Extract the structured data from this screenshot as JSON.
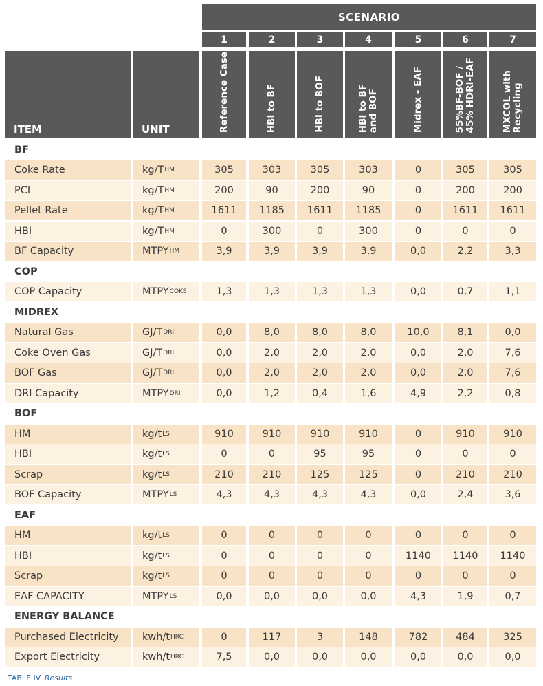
{
  "header": {
    "scenario_title": "SCENARIO",
    "item_label": "ITEM",
    "unit_label": "UNIT",
    "scenarios": [
      {
        "number": "1",
        "name": "Reference Case"
      },
      {
        "number": "2",
        "name": "HBI to BF"
      },
      {
        "number": "3",
        "name": "HBI to BOF"
      },
      {
        "number": "4",
        "name": "HBI to BF\nand BOF"
      },
      {
        "number": "5",
        "name": "Midrex - EAF"
      },
      {
        "number": "6",
        "name": "55%BF-BOF /\n45% HDRI-EAF"
      },
      {
        "number": "7",
        "name": "MXCOL with\nRecycling"
      }
    ]
  },
  "sections": [
    {
      "title": "BF",
      "rows": [
        {
          "item": "Coke Rate",
          "unit": "kg/T",
          "unit_sub": "HM",
          "values": [
            "305",
            "303",
            "305",
            "303",
            "0",
            "305",
            "305"
          ]
        },
        {
          "item": "PCI",
          "unit": "kg/T",
          "unit_sub": "HM",
          "values": [
            "200",
            "90",
            "200",
            "90",
            "0",
            "200",
            "200"
          ]
        },
        {
          "item": "Pellet Rate",
          "unit": "kg/T",
          "unit_sub": "HM",
          "values": [
            "1611",
            "1185",
            "1611",
            "1185",
            "0",
            "1611",
            "1611"
          ]
        },
        {
          "item": "HBI",
          "unit": "kg/T",
          "unit_sub": "HM",
          "values": [
            "0",
            "300",
            "0",
            "300",
            "0",
            "0",
            "0"
          ]
        },
        {
          "item": "BF Capacity",
          "unit": "MTPY",
          "unit_sub": "HM",
          "values": [
            "3,9",
            "3,9",
            "3,9",
            "3,9",
            "0,0",
            "2,2",
            "3,3"
          ]
        }
      ]
    },
    {
      "title": "COP",
      "rows": [
        {
          "item": "COP Capacity",
          "unit": "MTPY",
          "unit_sub": "COKE",
          "values": [
            "1,3",
            "1,3",
            "1,3",
            "1,3",
            "0,0",
            "0,7",
            "1,1"
          ]
        }
      ]
    },
    {
      "title": "MIDREX",
      "rows": [
        {
          "item": "Natural Gas",
          "unit": "GJ/T",
          "unit_sub": "DRI",
          "values": [
            "0,0",
            "8,0",
            "8,0",
            "8,0",
            "10,0",
            "8,1",
            "0,0"
          ]
        },
        {
          "item": "Coke Oven Gas",
          "unit": "GJ/T",
          "unit_sub": "DRI",
          "values": [
            "0,0",
            "2,0",
            "2,0",
            "2,0",
            "0,0",
            "2,0",
            "7,6"
          ]
        },
        {
          "item": "BOF Gas",
          "unit": "GJ/T",
          "unit_sub": "DRI",
          "values": [
            "0,0",
            "2,0",
            "2,0",
            "2,0",
            "0,0",
            "2,0",
            "7,6"
          ]
        },
        {
          "item": "DRI Capacity",
          "unit": "MTPY",
          "unit_sub": "DRI",
          "values": [
            "0,0",
            "1,2",
            "0,4",
            "1,6",
            "4,9",
            "2,2",
            "0,8"
          ]
        }
      ]
    },
    {
      "title": "BOF",
      "rows": [
        {
          "item": "HM",
          "unit": "kg/t",
          "unit_sub": "LS",
          "values": [
            "910",
            "910",
            "910",
            "910",
            "0",
            "910",
            "910"
          ]
        },
        {
          "item": "HBI",
          "unit": "kg/t",
          "unit_sub": "LS",
          "values": [
            "0",
            "0",
            "95",
            "95",
            "0",
            "0",
            "0"
          ]
        },
        {
          "item": "Scrap",
          "unit": "kg/t",
          "unit_sub": "LS",
          "values": [
            "210",
            "210",
            "125",
            "125",
            "0",
            "210",
            "210"
          ]
        },
        {
          "item": "BOF Capacity",
          "unit": "MTPY",
          "unit_sub": "LS",
          "values": [
            "4,3",
            "4,3",
            "4,3",
            "4,3",
            "0,0",
            "2,4",
            "3,6"
          ]
        }
      ]
    },
    {
      "title": "EAF",
      "rows": [
        {
          "item": "HM",
          "unit": "kg/t",
          "unit_sub": "LS",
          "values": [
            "0",
            "0",
            "0",
            "0",
            "0",
            "0",
            "0"
          ]
        },
        {
          "item": "HBI",
          "unit": "kg/t",
          "unit_sub": "LS",
          "values": [
            "0",
            "0",
            "0",
            "0",
            "1140",
            "1140",
            "1140"
          ]
        },
        {
          "item": "Scrap",
          "unit": "kg/t",
          "unit_sub": "LS",
          "values": [
            "0",
            "0",
            "0",
            "0",
            "0",
            "0",
            "0"
          ]
        },
        {
          "item": "EAF CAPACITY",
          "unit": "MTPY",
          "unit_sub": "LS",
          "values": [
            "0,0",
            "0,0",
            "0,0",
            "0,0",
            "4,3",
            "1,9",
            "0,7"
          ]
        }
      ]
    },
    {
      "title": "ENERGY BALANCE",
      "rows": [
        {
          "item": "Purchased Electricity",
          "unit": "kwh/t",
          "unit_sub": "HRC",
          "values": [
            "0",
            "117",
            "3",
            "148",
            "782",
            "484",
            "325"
          ]
        },
        {
          "item": "Export Electricity",
          "unit": "kwh/t",
          "unit_sub": "HRC",
          "values": [
            "7,5",
            "0,0",
            "0,0",
            "0,0",
            "0,0",
            "0,0",
            "0,0"
          ]
        }
      ]
    }
  ],
  "caption": {
    "label": "TABLE IV.",
    "title": "Results"
  },
  "colors": {
    "header": "#58595b",
    "row_dark": "#f8e3c7",
    "row_light": "#fdf1e1"
  }
}
